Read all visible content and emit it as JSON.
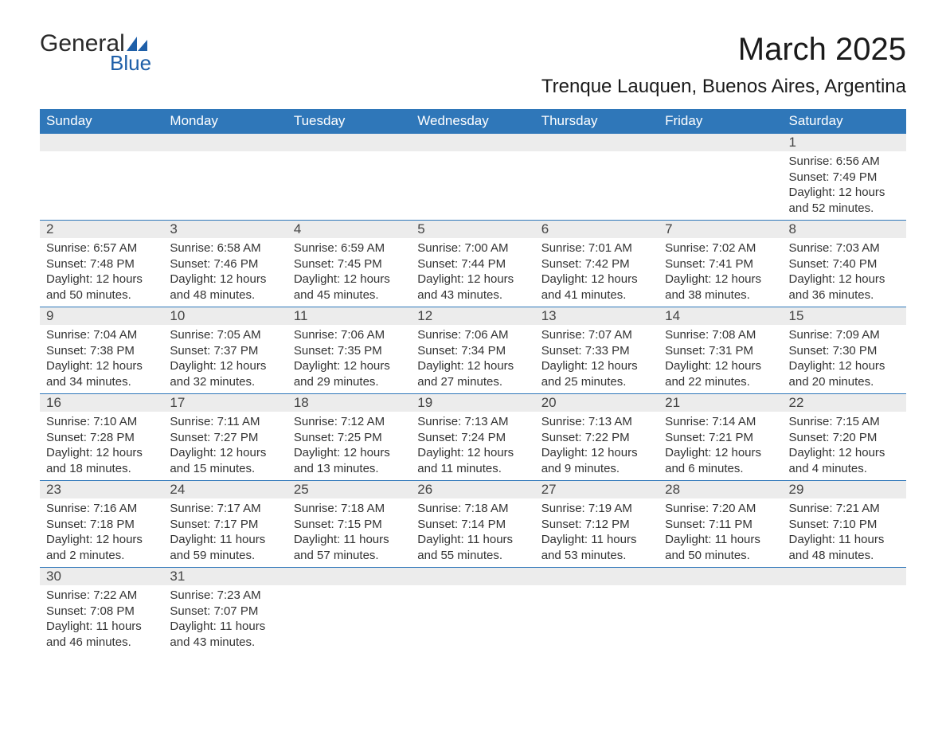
{
  "brand": {
    "word1": "General",
    "word2": "Blue",
    "color1": "#2a2a2a",
    "color2": "#1e5fa8"
  },
  "title": "March 2025",
  "location": "Trenque Lauquen, Buenos Aires, Argentina",
  "theme": {
    "header_bg": "#2f77b9",
    "header_fg": "#ffffff",
    "row_border": "#2f77b9",
    "daynum_bg": "#ececec",
    "body_fg": "#333333",
    "page_bg": "#ffffff",
    "title_fontsize_pt": 30,
    "location_fontsize_pt": 18,
    "dayheader_fontsize_pt": 13,
    "body_fontsize_pt": 11
  },
  "day_headers": [
    "Sunday",
    "Monday",
    "Tuesday",
    "Wednesday",
    "Thursday",
    "Friday",
    "Saturday"
  ],
  "weeks": [
    [
      null,
      null,
      null,
      null,
      null,
      null,
      {
        "n": "1",
        "sr": "Sunrise: 6:56 AM",
        "ss": "Sunset: 7:49 PM",
        "dl": "Daylight: 12 hours and 52 minutes."
      }
    ],
    [
      {
        "n": "2",
        "sr": "Sunrise: 6:57 AM",
        "ss": "Sunset: 7:48 PM",
        "dl": "Daylight: 12 hours and 50 minutes."
      },
      {
        "n": "3",
        "sr": "Sunrise: 6:58 AM",
        "ss": "Sunset: 7:46 PM",
        "dl": "Daylight: 12 hours and 48 minutes."
      },
      {
        "n": "4",
        "sr": "Sunrise: 6:59 AM",
        "ss": "Sunset: 7:45 PM",
        "dl": "Daylight: 12 hours and 45 minutes."
      },
      {
        "n": "5",
        "sr": "Sunrise: 7:00 AM",
        "ss": "Sunset: 7:44 PM",
        "dl": "Daylight: 12 hours and 43 minutes."
      },
      {
        "n": "6",
        "sr": "Sunrise: 7:01 AM",
        "ss": "Sunset: 7:42 PM",
        "dl": "Daylight: 12 hours and 41 minutes."
      },
      {
        "n": "7",
        "sr": "Sunrise: 7:02 AM",
        "ss": "Sunset: 7:41 PM",
        "dl": "Daylight: 12 hours and 38 minutes."
      },
      {
        "n": "8",
        "sr": "Sunrise: 7:03 AM",
        "ss": "Sunset: 7:40 PM",
        "dl": "Daylight: 12 hours and 36 minutes."
      }
    ],
    [
      {
        "n": "9",
        "sr": "Sunrise: 7:04 AM",
        "ss": "Sunset: 7:38 PM",
        "dl": "Daylight: 12 hours and 34 minutes."
      },
      {
        "n": "10",
        "sr": "Sunrise: 7:05 AM",
        "ss": "Sunset: 7:37 PM",
        "dl": "Daylight: 12 hours and 32 minutes."
      },
      {
        "n": "11",
        "sr": "Sunrise: 7:06 AM",
        "ss": "Sunset: 7:35 PM",
        "dl": "Daylight: 12 hours and 29 minutes."
      },
      {
        "n": "12",
        "sr": "Sunrise: 7:06 AM",
        "ss": "Sunset: 7:34 PM",
        "dl": "Daylight: 12 hours and 27 minutes."
      },
      {
        "n": "13",
        "sr": "Sunrise: 7:07 AM",
        "ss": "Sunset: 7:33 PM",
        "dl": "Daylight: 12 hours and 25 minutes."
      },
      {
        "n": "14",
        "sr": "Sunrise: 7:08 AM",
        "ss": "Sunset: 7:31 PM",
        "dl": "Daylight: 12 hours and 22 minutes."
      },
      {
        "n": "15",
        "sr": "Sunrise: 7:09 AM",
        "ss": "Sunset: 7:30 PM",
        "dl": "Daylight: 12 hours and 20 minutes."
      }
    ],
    [
      {
        "n": "16",
        "sr": "Sunrise: 7:10 AM",
        "ss": "Sunset: 7:28 PM",
        "dl": "Daylight: 12 hours and 18 minutes."
      },
      {
        "n": "17",
        "sr": "Sunrise: 7:11 AM",
        "ss": "Sunset: 7:27 PM",
        "dl": "Daylight: 12 hours and 15 minutes."
      },
      {
        "n": "18",
        "sr": "Sunrise: 7:12 AM",
        "ss": "Sunset: 7:25 PM",
        "dl": "Daylight: 12 hours and 13 minutes."
      },
      {
        "n": "19",
        "sr": "Sunrise: 7:13 AM",
        "ss": "Sunset: 7:24 PM",
        "dl": "Daylight: 12 hours and 11 minutes."
      },
      {
        "n": "20",
        "sr": "Sunrise: 7:13 AM",
        "ss": "Sunset: 7:22 PM",
        "dl": "Daylight: 12 hours and 9 minutes."
      },
      {
        "n": "21",
        "sr": "Sunrise: 7:14 AM",
        "ss": "Sunset: 7:21 PM",
        "dl": "Daylight: 12 hours and 6 minutes."
      },
      {
        "n": "22",
        "sr": "Sunrise: 7:15 AM",
        "ss": "Sunset: 7:20 PM",
        "dl": "Daylight: 12 hours and 4 minutes."
      }
    ],
    [
      {
        "n": "23",
        "sr": "Sunrise: 7:16 AM",
        "ss": "Sunset: 7:18 PM",
        "dl": "Daylight: 12 hours and 2 minutes."
      },
      {
        "n": "24",
        "sr": "Sunrise: 7:17 AM",
        "ss": "Sunset: 7:17 PM",
        "dl": "Daylight: 11 hours and 59 minutes."
      },
      {
        "n": "25",
        "sr": "Sunrise: 7:18 AM",
        "ss": "Sunset: 7:15 PM",
        "dl": "Daylight: 11 hours and 57 minutes."
      },
      {
        "n": "26",
        "sr": "Sunrise: 7:18 AM",
        "ss": "Sunset: 7:14 PM",
        "dl": "Daylight: 11 hours and 55 minutes."
      },
      {
        "n": "27",
        "sr": "Sunrise: 7:19 AM",
        "ss": "Sunset: 7:12 PM",
        "dl": "Daylight: 11 hours and 53 minutes."
      },
      {
        "n": "28",
        "sr": "Sunrise: 7:20 AM",
        "ss": "Sunset: 7:11 PM",
        "dl": "Daylight: 11 hours and 50 minutes."
      },
      {
        "n": "29",
        "sr": "Sunrise: 7:21 AM",
        "ss": "Sunset: 7:10 PM",
        "dl": "Daylight: 11 hours and 48 minutes."
      }
    ],
    [
      {
        "n": "30",
        "sr": "Sunrise: 7:22 AM",
        "ss": "Sunset: 7:08 PM",
        "dl": "Daylight: 11 hours and 46 minutes."
      },
      {
        "n": "31",
        "sr": "Sunrise: 7:23 AM",
        "ss": "Sunset: 7:07 PM",
        "dl": "Daylight: 11 hours and 43 minutes."
      },
      null,
      null,
      null,
      null,
      null
    ]
  ]
}
